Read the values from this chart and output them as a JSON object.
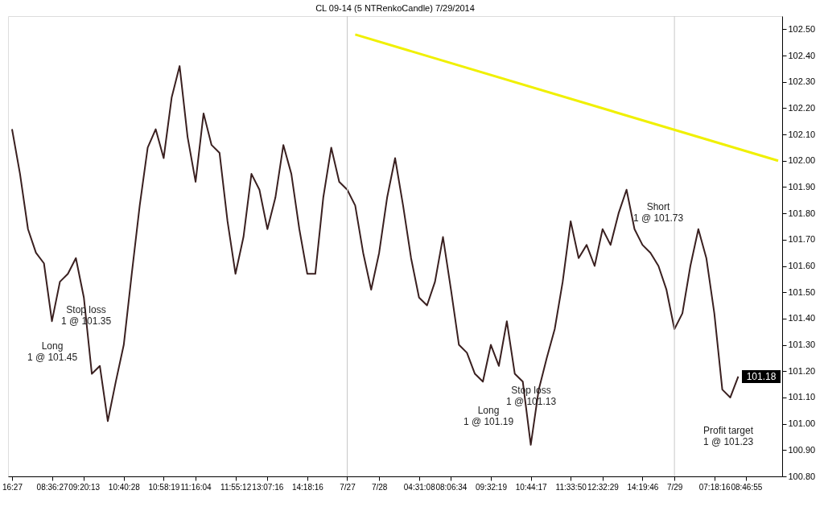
{
  "chart_data": {
    "type": "line",
    "title": "CL 09-14 (5 NTRenkoCandle)  7/29/2014",
    "categories": [
      "16:27",
      null,
      null,
      null,
      null,
      "08:36:27",
      null,
      null,
      null,
      "09:20:13",
      null,
      null,
      null,
      null,
      "10:40:28",
      null,
      null,
      null,
      null,
      "10:58:19",
      null,
      null,
      null,
      "11:16:04",
      null,
      null,
      null,
      null,
      "11:55:12",
      null,
      null,
      null,
      "13:07:16",
      null,
      null,
      null,
      null,
      "14:18:16",
      null,
      null,
      null,
      null,
      "7/27",
      null,
      null,
      null,
      "7/28",
      null,
      null,
      null,
      null,
      "04:31:08",
      null,
      null,
      null,
      "08:06:34",
      null,
      null,
      null,
      null,
      "09:32:19",
      null,
      null,
      null,
      null,
      "10:44:17",
      null,
      null,
      null,
      null,
      "11:33:50",
      null,
      null,
      null,
      "12:32:29",
      null,
      null,
      null,
      null,
      "14:19:46",
      null,
      null,
      null,
      "7/29",
      null,
      null,
      null,
      null,
      "07:18:16",
      null,
      null,
      null,
      "08:46:55",
      null,
      null,
      null,
      null
    ],
    "series": [
      {
        "color": "#3a2020",
        "values": [
          102.12,
          101.95,
          101.74,
          101.65,
          101.61,
          101.39,
          101.54,
          101.57,
          101.63,
          101.48,
          101.19,
          101.22,
          101.01,
          101.16,
          101.3,
          101.57,
          101.83,
          102.05,
          102.12,
          102.01,
          102.24,
          102.36,
          102.09,
          101.92,
          102.18,
          102.06,
          102.03,
          101.77,
          101.57,
          101.71,
          101.95,
          101.89,
          101.74,
          101.86,
          102.06,
          101.95,
          101.74,
          101.57,
          101.57,
          101.86,
          102.05,
          101.92,
          101.89,
          101.83,
          101.65,
          101.51,
          101.65,
          101.86,
          102.01,
          101.83,
          101.63,
          101.48,
          101.45,
          101.54,
          101.71,
          101.51,
          101.3,
          101.27,
          101.19,
          101.16,
          101.3,
          101.22,
          101.39,
          101.19,
          101.16,
          100.92,
          101.13,
          101.25,
          101.36,
          101.54,
          101.77,
          101.63,
          101.68,
          101.6,
          101.74,
          101.68,
          101.8,
          101.89,
          101.74,
          101.68,
          101.65,
          101.6,
          101.51,
          101.36,
          101.42,
          101.6,
          101.74,
          101.63,
          101.42,
          101.13,
          101.1,
          101.18,
          null,
          null,
          null,
          null,
          null
        ]
      },
      {
        "color": "#f0f000",
        "values": [
          null,
          null,
          null,
          null,
          null,
          null,
          null,
          null,
          null,
          null,
          null,
          null,
          null,
          null,
          null,
          null,
          null,
          null,
          null,
          null,
          null,
          null,
          null,
          null,
          null,
          null,
          null,
          null,
          null,
          null,
          null,
          null,
          null,
          null,
          null,
          null,
          null,
          null,
          null,
          null,
          null,
          null,
          null,
          102.48,
          null,
          null,
          null,
          null,
          null,
          null,
          null,
          null,
          null,
          null,
          null,
          null,
          null,
          null,
          null,
          null,
          null,
          null,
          null,
          null,
          null,
          null,
          null,
          null,
          null,
          null,
          null,
          null,
          null,
          null,
          null,
          null,
          null,
          null,
          null,
          null,
          null,
          null,
          null,
          null,
          null,
          null,
          null,
          null,
          null,
          null,
          null,
          null,
          null,
          null,
          null,
          null,
          102.0
        ]
      }
    ],
    "ylim": [
      100.8,
      102.55
    ],
    "yticks": [
      {
        "value": 100.8,
        "label": "100.80"
      },
      {
        "value": 100.9,
        "label": "100.90"
      },
      {
        "value": 101.0,
        "label": "101.00"
      },
      {
        "value": 101.1,
        "label": "101.10"
      },
      {
        "value": 101.2,
        "label": "101.20"
      },
      {
        "value": 101.3,
        "label": "101.30"
      },
      {
        "value": 101.4,
        "label": "101.40"
      },
      {
        "value": 101.5,
        "label": "101.50"
      },
      {
        "value": 101.6,
        "label": "101.60"
      },
      {
        "value": 101.7,
        "label": "101.70"
      },
      {
        "value": 101.8,
        "label": "101.80"
      },
      {
        "value": 101.9,
        "label": "101.90"
      },
      {
        "value": 102.0,
        "label": "102.00"
      },
      {
        "value": 102.1,
        "label": "102.10"
      },
      {
        "value": 102.2,
        "label": "102.20"
      },
      {
        "value": 102.3,
        "label": "102.30"
      },
      {
        "value": 102.4,
        "label": "102.40"
      },
      {
        "value": 102.5,
        "label": "102.50"
      }
    ],
    "ref_lines": [
      {
        "axis": "x",
        "value": "7/27",
        "color": "#c8c8c8"
      },
      {
        "axis": "x",
        "value": "7/29",
        "color": "#c8c8c8"
      }
    ],
    "annotations": [
      "Long\n1 @ 101.45",
      "Stop loss\n1 @ 101.35",
      "Long\n1 @ 101.19",
      "Stop loss\n1 @ 101.13",
      "Short\n1 @ 101.73",
      "Profit target\n1 @ 101.23",
      "101.18"
    ],
    "grid": false,
    "marker": "none",
    "line_style": "solid"
  }
}
